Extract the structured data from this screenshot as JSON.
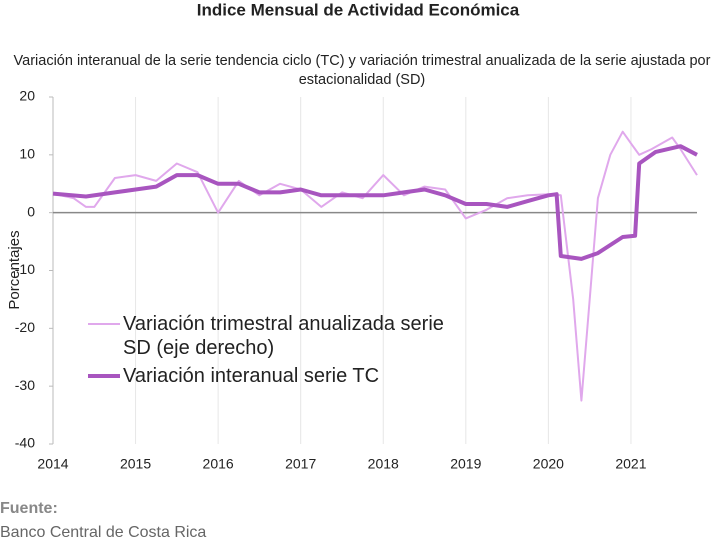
{
  "chart_data": {
    "type": "line",
    "title": "Indice Mensual de  Actividad Económica",
    "subtitle": "Variación interanual de la serie tendencia ciclo (TC) y variación trimestral anualizada de la serie ajustada por estacionalidad (SD)",
    "y_label": "Porcentajes",
    "source_label": "Fuente:",
    "source": "Banco Central de Costa Rica",
    "xlim": [
      2014,
      2021.8
    ],
    "xticks": [
      2014,
      2015,
      2016,
      2017,
      2018,
      2019,
      2020,
      2021
    ],
    "ylim": [
      -40,
      20
    ],
    "yticks": [
      -40,
      -30,
      -20,
      -10,
      0,
      10,
      20
    ],
    "grid": true,
    "series": [
      {
        "name": "Variación trimestral anualizada serie SD (eje derecho)",
        "color": "#e0a8ec",
        "width": 2,
        "x": [
          2014.0,
          2014.25,
          2014.4,
          2014.5,
          2014.75,
          2015.0,
          2015.25,
          2015.5,
          2015.75,
          2016.0,
          2016.25,
          2016.5,
          2016.75,
          2017.0,
          2017.25,
          2017.5,
          2017.75,
          2018.0,
          2018.25,
          2018.5,
          2018.75,
          2019.0,
          2019.25,
          2019.5,
          2019.75,
          2020.0,
          2020.15,
          2020.3,
          2020.4,
          2020.5,
          2020.6,
          2020.75,
          2020.9,
          2021.0,
          2021.1,
          2021.25,
          2021.5,
          2021.6,
          2021.8
        ],
        "values": [
          3.3,
          2.5,
          1,
          1,
          6,
          6.5,
          5.5,
          8.5,
          7,
          0,
          5.5,
          3,
          5,
          4,
          1,
          3.5,
          2.5,
          6.5,
          3,
          4.5,
          4,
          -1,
          0.5,
          2.5,
          3,
          3.2,
          3,
          -15,
          -32.5,
          -15,
          2.5,
          10,
          14,
          12,
          10,
          11,
          13,
          11,
          6.5
        ]
      },
      {
        "name": "Variación interanual serie TC",
        "color": "#a855bf",
        "width": 4,
        "x": [
          2014.0,
          2014.4,
          2014.75,
          2015.0,
          2015.25,
          2015.5,
          2015.75,
          2016.0,
          2016.25,
          2016.5,
          2016.75,
          2017.0,
          2017.25,
          2017.5,
          2017.75,
          2018.0,
          2018.25,
          2018.5,
          2018.75,
          2019.0,
          2019.25,
          2019.5,
          2019.75,
          2020.0,
          2020.1,
          2020.15,
          2020.4,
          2020.6,
          2020.9,
          2021.05,
          2021.1,
          2021.3,
          2021.6,
          2021.8
        ],
        "values": [
          3.3,
          2.8,
          3.5,
          4,
          4.5,
          6.5,
          6.5,
          5,
          5,
          3.5,
          3.5,
          4,
          3,
          3,
          3,
          3,
          3.5,
          4,
          3,
          1.5,
          1.5,
          1,
          2,
          3,
          3.2,
          -7.5,
          -8,
          -7,
          -4.2,
          -4,
          8.5,
          10.5,
          11.5,
          10
        ]
      }
    ]
  }
}
